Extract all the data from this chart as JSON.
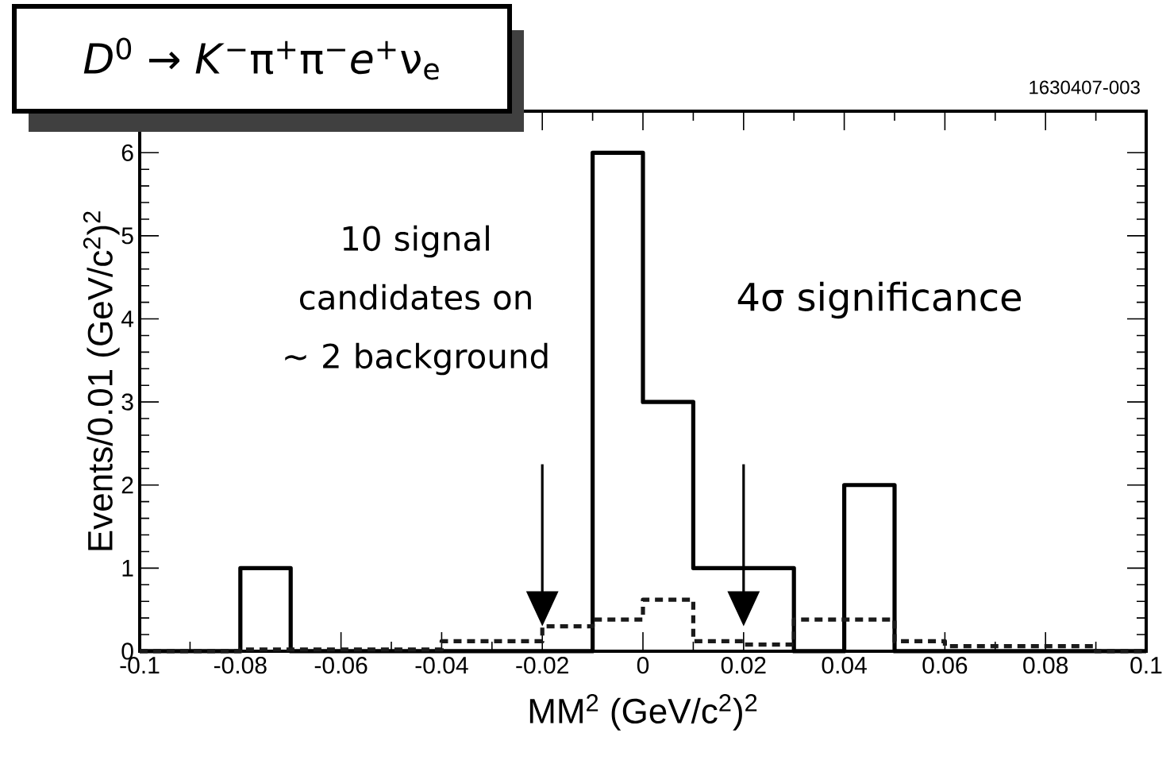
{
  "chart_data": {
    "type": "histogram",
    "title": "*D*$^{0}$ → *K*$^{−}$π$^{+}$π$^{−}$*e*$^{+}$ν$_{e}$",
    "xlabel": "MM$^{2}$ (GeV/c$^{2}$)$^{2}$",
    "ylabel": "Events/0.01 (GeV/c$^{2}$)$^{2}$",
    "annotations": [
      "1630407-003",
      "10 signal candidates on ∼ 2 background",
      "4σ significance"
    ],
    "bins": [
      -0.1,
      -0.09,
      -0.08,
      -0.07,
      -0.06,
      -0.05,
      -0.04,
      -0.03,
      -0.02,
      -0.01,
      0,
      0.01,
      0.02,
      0.03,
      0.04,
      0.05,
      0.06,
      0.07,
      0.08,
      0.09,
      0.1
    ],
    "series": [
      {
        "color": "#000000",
        "line_style": "solid",
        "values": [
          0,
          0,
          1,
          0,
          0,
          0,
          0,
          0,
          0,
          6,
          3,
          1,
          1,
          0,
          2,
          0,
          0,
          0,
          0,
          0
        ]
      },
      {
        "color": "#1a1a1a",
        "line_style": "dotted",
        "values": [
          0,
          0,
          0.02,
          0.02,
          0.02,
          0.02,
          0.12,
          0.12,
          0.3,
          0.38,
          0.62,
          0.12,
          0.08,
          0.38,
          0.38,
          0.12,
          0.06,
          0.06,
          0.06,
          0
        ]
      }
    ],
    "xlim": [
      -0.1,
      0.1
    ],
    "ylim": [
      0,
      6.5
    ],
    "xticks": [
      -0.1,
      -0.08,
      -0.06,
      -0.04,
      -0.02,
      0,
      0.02,
      0.04,
      0.06,
      0.08,
      0.1
    ],
    "yticks": [
      0,
      1,
      2,
      3,
      4,
      5,
      6
    ],
    "ref_lines": [
      {
        "axis": "x",
        "value": -0.02
      },
      {
        "axis": "x",
        "value": 0.02
      }
    ]
  }
}
